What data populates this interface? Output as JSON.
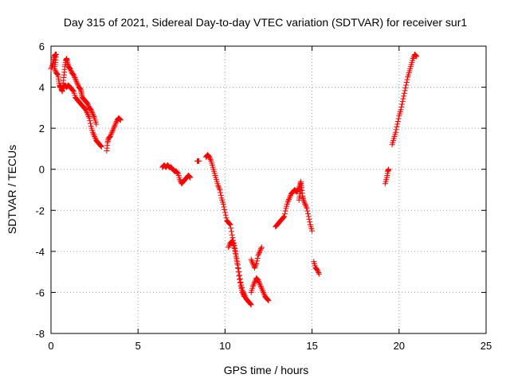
{
  "chart_data": {
    "type": "scatter",
    "title": "Day 315 of 2021, Sidereal Day-to-day VTEC variation (SDTVAR) for receiver sur1",
    "xlabel": "GPS time / hours",
    "ylabel": "SDTVAR / TECUs",
    "xlim": [
      0,
      25
    ],
    "ylim": [
      -8,
      6
    ],
    "xticks": [
      "0",
      "5",
      "10",
      "15",
      "20",
      "25"
    ],
    "yticks": [
      "-8",
      "-6",
      "-4",
      "-2",
      "0",
      "2",
      "4",
      "6"
    ],
    "grid": true,
    "marker": "plus",
    "color": "#ff0000",
    "segments": [
      [
        [
          0.0,
          4.9
        ],
        [
          0.1,
          5.1
        ],
        [
          0.15,
          5.3
        ],
        [
          0.2,
          5.5
        ],
        [
          0.25,
          5.6
        ],
        [
          0.3,
          5.6
        ],
        [
          0.25,
          5.2
        ],
        [
          0.2,
          4.9
        ],
        [
          0.3,
          4.7
        ],
        [
          0.4,
          4.6
        ],
        [
          0.45,
          4.3
        ],
        [
          0.5,
          4.0
        ],
        [
          0.55,
          4.1
        ],
        [
          0.6,
          3.9
        ],
        [
          0.65,
          3.8
        ],
        [
          0.7,
          4.2
        ],
        [
          0.75,
          4.6
        ],
        [
          0.8,
          5.0
        ],
        [
          0.85,
          5.3
        ],
        [
          0.9,
          5.4
        ],
        [
          0.95,
          5.2
        ],
        [
          1.0,
          5.0
        ],
        [
          1.1,
          4.9
        ],
        [
          1.2,
          4.7
        ],
        [
          1.3,
          4.6
        ],
        [
          1.4,
          4.4
        ],
        [
          1.5,
          4.2
        ],
        [
          1.6,
          4.0
        ],
        [
          1.7,
          3.9
        ],
        [
          1.75,
          3.7
        ],
        [
          1.8,
          3.5
        ],
        [
          1.9,
          3.4
        ],
        [
          2.0,
          3.3
        ],
        [
          2.1,
          3.2
        ],
        [
          2.2,
          3.0
        ],
        [
          2.3,
          2.9
        ],
        [
          2.4,
          2.7
        ],
        [
          2.5,
          2.5
        ],
        [
          2.6,
          2.2
        ]
      ],
      [
        [
          0.7,
          4.0
        ],
        [
          0.8,
          4.1
        ],
        [
          0.9,
          4.0
        ],
        [
          1.0,
          4.1
        ],
        [
          1.1,
          4.0
        ],
        [
          1.2,
          3.9
        ],
        [
          1.3,
          3.8
        ],
        [
          1.4,
          3.5
        ],
        [
          1.5,
          3.4
        ],
        [
          1.6,
          3.3
        ],
        [
          1.7,
          3.2
        ],
        [
          1.8,
          3.1
        ],
        [
          1.9,
          3.0
        ],
        [
          2.0,
          2.9
        ],
        [
          2.1,
          2.7
        ],
        [
          2.2,
          2.5
        ],
        [
          2.3,
          2.1
        ],
        [
          2.4,
          1.8
        ],
        [
          2.5,
          1.6
        ],
        [
          2.6,
          1.4
        ],
        [
          2.7,
          1.3
        ],
        [
          2.8,
          1.2
        ],
        [
          2.9,
          1.1
        ]
      ],
      [
        [
          3.2,
          0.9
        ],
        [
          3.25,
          1.3
        ],
        [
          3.3,
          1.5
        ],
        [
          3.4,
          1.6
        ],
        [
          3.5,
          1.8
        ],
        [
          3.6,
          2.0
        ],
        [
          3.7,
          2.2
        ],
        [
          3.8,
          2.4
        ],
        [
          3.9,
          2.5
        ],
        [
          4.0,
          2.4
        ]
      ],
      [
        [
          6.4,
          0.1
        ],
        [
          6.5,
          0.2
        ],
        [
          6.6,
          0.1
        ],
        [
          6.7,
          0.2
        ],
        [
          6.8,
          0.1
        ],
        [
          6.9,
          0.1
        ],
        [
          7.0,
          0.0
        ],
        [
          7.1,
          -0.1
        ],
        [
          7.2,
          -0.1
        ],
        [
          7.3,
          -0.2
        ],
        [
          7.4,
          -0.5
        ],
        [
          7.5,
          -0.7
        ],
        [
          7.6,
          -0.6
        ],
        [
          7.7,
          -0.5
        ],
        [
          7.8,
          -0.4
        ],
        [
          7.9,
          -0.3
        ],
        [
          8.0,
          -0.4
        ]
      ],
      [
        [
          8.4,
          0.4
        ],
        [
          8.5,
          0.4
        ]
      ],
      [
        [
          8.9,
          0.6
        ],
        [
          9.0,
          0.7
        ],
        [
          9.1,
          0.6
        ],
        [
          9.2,
          0.4
        ],
        [
          9.3,
          0.1
        ],
        [
          9.4,
          -0.2
        ],
        [
          9.5,
          -0.5
        ],
        [
          9.6,
          -0.8
        ],
        [
          9.7,
          -1.0
        ],
        [
          9.8,
          -1.4
        ],
        [
          9.9,
          -1.7
        ],
        [
          10.0,
          -2.1
        ],
        [
          10.1,
          -2.5
        ],
        [
          10.2,
          -2.6
        ],
        [
          10.3,
          -2.7
        ],
        [
          10.4,
          -3.2
        ],
        [
          10.5,
          -3.6
        ],
        [
          10.6,
          -4.0
        ],
        [
          10.7,
          -4.5
        ],
        [
          10.8,
          -5.0
        ],
        [
          10.9,
          -5.5
        ],
        [
          11.0,
          -5.9
        ],
        [
          11.1,
          -6.1
        ],
        [
          11.2,
          -6.3
        ],
        [
          11.3,
          -6.4
        ],
        [
          11.4,
          -6.5
        ],
        [
          11.5,
          -6.6
        ]
      ],
      [
        [
          10.2,
          -3.8
        ],
        [
          10.3,
          -3.6
        ],
        [
          10.4,
          -3.5
        ],
        [
          10.5,
          -3.7
        ],
        [
          10.6,
          -4.1
        ],
        [
          10.7,
          -4.6
        ],
        [
          10.8,
          -5.2
        ],
        [
          10.9,
          -5.7
        ],
        [
          11.0,
          -6.0
        ],
        [
          11.1,
          -6.2
        ]
      ],
      [
        [
          11.5,
          -4.4
        ],
        [
          11.6,
          -4.6
        ],
        [
          11.7,
          -4.8
        ],
        [
          11.8,
          -4.6
        ],
        [
          11.9,
          -4.2
        ],
        [
          12.0,
          -4.0
        ],
        [
          12.1,
          -3.8
        ]
      ],
      [
        [
          11.5,
          -6.0
        ],
        [
          11.6,
          -5.7
        ],
        [
          11.7,
          -5.5
        ],
        [
          11.8,
          -5.3
        ],
        [
          11.9,
          -5.4
        ],
        [
          12.0,
          -5.6
        ],
        [
          12.1,
          -5.8
        ],
        [
          12.2,
          -6.0
        ],
        [
          12.3,
          -6.2
        ],
        [
          12.4,
          -6.3
        ],
        [
          12.5,
          -6.4
        ]
      ],
      [
        [
          12.9,
          -2.8
        ],
        [
          13.0,
          -2.7
        ],
        [
          13.1,
          -2.6
        ],
        [
          13.2,
          -2.5
        ],
        [
          13.3,
          -2.4
        ],
        [
          13.4,
          -2.3
        ],
        [
          13.5,
          -1.9
        ],
        [
          13.6,
          -1.6
        ],
        [
          13.7,
          -1.4
        ],
        [
          13.8,
          -1.2
        ],
        [
          13.9,
          -1.1
        ],
        [
          14.0,
          -1.0
        ],
        [
          14.1,
          -1.1
        ],
        [
          14.2,
          -1.0
        ],
        [
          14.3,
          -0.8
        ],
        [
          14.35,
          -0.6
        ],
        [
          14.4,
          -0.9
        ],
        [
          14.45,
          -1.3
        ],
        [
          14.5,
          -1.5
        ],
        [
          14.6,
          -1.7
        ],
        [
          14.7,
          -1.9
        ],
        [
          14.8,
          -2.3
        ],
        [
          14.9,
          -2.7
        ],
        [
          15.0,
          -3.0
        ]
      ],
      [
        [
          14.25,
          -1.5
        ],
        [
          14.3,
          -1.2
        ],
        [
          14.35,
          -0.9
        ]
      ],
      [
        [
          15.1,
          -4.5
        ],
        [
          15.2,
          -4.8
        ],
        [
          15.3,
          -4.9
        ],
        [
          15.4,
          -5.1
        ]
      ],
      [
        [
          19.2,
          -0.7
        ],
        [
          19.3,
          -0.4
        ],
        [
          19.35,
          -0.1
        ],
        [
          19.4,
          0.0
        ]
      ],
      [
        [
          19.6,
          1.2
        ],
        [
          19.7,
          1.5
        ],
        [
          19.8,
          1.8
        ],
        [
          19.9,
          2.2
        ],
        [
          20.0,
          2.6
        ],
        [
          20.1,
          2.9
        ],
        [
          20.2,
          3.3
        ],
        [
          20.3,
          3.7
        ],
        [
          20.4,
          4.1
        ],
        [
          20.5,
          4.5
        ],
        [
          20.6,
          4.8
        ],
        [
          20.7,
          5.1
        ],
        [
          20.8,
          5.4
        ],
        [
          20.9,
          5.6
        ],
        [
          21.0,
          5.5
        ]
      ]
    ]
  }
}
